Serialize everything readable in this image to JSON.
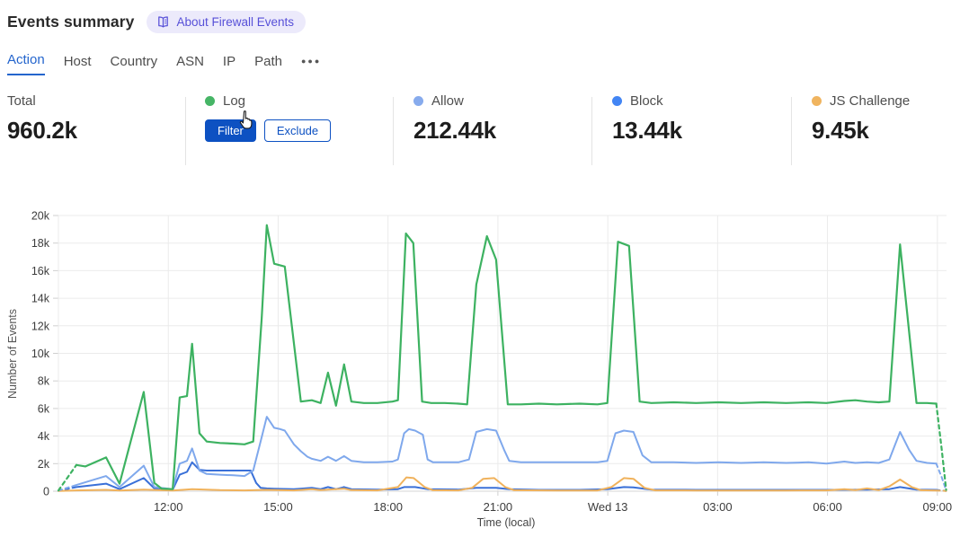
{
  "header": {
    "title": "Events summary",
    "about_label": "About Firewall Events"
  },
  "tabs": {
    "items": [
      {
        "label": "Action",
        "active": true
      },
      {
        "label": "Host"
      },
      {
        "label": "Country"
      },
      {
        "label": "ASN"
      },
      {
        "label": "IP"
      },
      {
        "label": "Path"
      }
    ]
  },
  "stats": {
    "total": {
      "label": "Total",
      "value": "960.2k"
    },
    "log": {
      "label": "Log",
      "dot_color": "#46b566",
      "filter_label": "Filter",
      "exclude_label": "Exclude"
    },
    "allow": {
      "label": "Allow",
      "value": "212.44k",
      "dot_color": "#87abed"
    },
    "block": {
      "label": "Block",
      "value": "13.44k",
      "dot_color": "#4285f4"
    },
    "js_challenge": {
      "label": "JS Challenge",
      "value": "9.45k",
      "dot_color": "#f0b45f"
    }
  },
  "colors": {
    "accent_blue": "#0d51c2",
    "badge_text": "#5750d8",
    "gridline": "#ebebeb",
    "axis": "#d5d5d5",
    "tick_text": "#3c3c3c"
  },
  "chart_data": {
    "type": "line",
    "title": "",
    "xlabel": "Time (local)",
    "ylabel": "Number of Events",
    "x_unit": "hours after 09:00 (previous day, local time)",
    "x_range_hours": [
      0,
      24.25
    ],
    "ylim": [
      0,
      20000
    ],
    "grid": true,
    "legend_position": "top-stats-row",
    "y_ticks": [
      {
        "v": 0,
        "label": "0"
      },
      {
        "v": 2000,
        "label": "2k"
      },
      {
        "v": 4000,
        "label": "4k"
      },
      {
        "v": 6000,
        "label": "6k"
      },
      {
        "v": 8000,
        "label": "8k"
      },
      {
        "v": 10000,
        "label": "10k"
      },
      {
        "v": 12000,
        "label": "12k"
      },
      {
        "v": 14000,
        "label": "14k"
      },
      {
        "v": 16000,
        "label": "16k"
      },
      {
        "v": 18000,
        "label": "18k"
      },
      {
        "v": 20000,
        "label": "20k"
      }
    ],
    "x_ticks": [
      {
        "t": 3,
        "label": "12:00"
      },
      {
        "t": 6,
        "label": "15:00"
      },
      {
        "t": 9,
        "label": "18:00"
      },
      {
        "t": 12,
        "label": "21:00"
      },
      {
        "t": 15,
        "label": "Wed 13"
      },
      {
        "t": 18,
        "label": "03:00"
      },
      {
        "t": 21,
        "label": "06:00"
      },
      {
        "t": 24,
        "label": "09:00"
      }
    ],
    "series": [
      {
        "name": "Block",
        "color": "#3a70d8",
        "width": 2,
        "dash_head": 1,
        "dash_tail": 1,
        "points": [
          [
            0,
            30
          ],
          [
            0.49,
            300
          ],
          [
            1.3,
            550
          ],
          [
            1.67,
            150
          ],
          [
            2.33,
            950
          ],
          [
            2.62,
            200
          ],
          [
            3.12,
            100
          ],
          [
            3.31,
            1200
          ],
          [
            3.51,
            1400
          ],
          [
            3.65,
            2100
          ],
          [
            3.85,
            1550
          ],
          [
            4.05,
            1500
          ],
          [
            4.41,
            1500
          ],
          [
            4.78,
            1500
          ],
          [
            5.08,
            1500
          ],
          [
            5.25,
            1500
          ],
          [
            5.4,
            600
          ],
          [
            5.52,
            250
          ],
          [
            5.69,
            200
          ],
          [
            5.89,
            180
          ],
          [
            6.43,
            150
          ],
          [
            6.92,
            250
          ],
          [
            7.16,
            150
          ],
          [
            7.36,
            300
          ],
          [
            7.58,
            150
          ],
          [
            7.8,
            300
          ],
          [
            8,
            150
          ],
          [
            8.71,
            120
          ],
          [
            9.27,
            150
          ],
          [
            9.44,
            300
          ],
          [
            9.74,
            300
          ],
          [
            10.08,
            150
          ],
          [
            10.92,
            120
          ],
          [
            11.41,
            250
          ],
          [
            11.95,
            250
          ],
          [
            12.31,
            150
          ],
          [
            13.12,
            100
          ],
          [
            14.23,
            100
          ],
          [
            14.99,
            150
          ],
          [
            15.44,
            300
          ],
          [
            15.7,
            280
          ],
          [
            16.19,
            120
          ],
          [
            17.41,
            100
          ],
          [
            18.64,
            100
          ],
          [
            19.87,
            100
          ],
          [
            20.97,
            100
          ],
          [
            22.08,
            120
          ],
          [
            22.69,
            150
          ],
          [
            22.98,
            300
          ],
          [
            23.43,
            120
          ],
          [
            23.97,
            100
          ],
          [
            24.24,
            20
          ]
        ]
      },
      {
        "name": "JS Challenge",
        "color": "#f0b25c",
        "width": 2,
        "dash_head": 0,
        "dash_tail": 1,
        "points": [
          [
            0,
            20
          ],
          [
            0.49,
            60
          ],
          [
            1.3,
            100
          ],
          [
            1.67,
            50
          ],
          [
            2.33,
            120
          ],
          [
            3.12,
            50
          ],
          [
            3.65,
            150
          ],
          [
            4.41,
            80
          ],
          [
            5.08,
            60
          ],
          [
            5.69,
            100
          ],
          [
            6.43,
            60
          ],
          [
            6.92,
            150
          ],
          [
            7.16,
            80
          ],
          [
            7.8,
            180
          ],
          [
            8,
            80
          ],
          [
            8.71,
            60
          ],
          [
            9.27,
            300
          ],
          [
            9.5,
            1000
          ],
          [
            9.7,
            950
          ],
          [
            10,
            300
          ],
          [
            10.23,
            70
          ],
          [
            10.92,
            60
          ],
          [
            11.3,
            250
          ],
          [
            11.6,
            900
          ],
          [
            11.9,
            950
          ],
          [
            12.2,
            300
          ],
          [
            12.45,
            70
          ],
          [
            13.61,
            50
          ],
          [
            14.72,
            50
          ],
          [
            15.1,
            300
          ],
          [
            15.44,
            950
          ],
          [
            15.7,
            900
          ],
          [
            16,
            250
          ],
          [
            16.3,
            60
          ],
          [
            17.41,
            50
          ],
          [
            18.64,
            50
          ],
          [
            19.87,
            50
          ],
          [
            20.97,
            60
          ],
          [
            21.46,
            150
          ],
          [
            21.76,
            80
          ],
          [
            22.08,
            200
          ],
          [
            22.4,
            80
          ],
          [
            22.69,
            350
          ],
          [
            22.98,
            850
          ],
          [
            23.3,
            300
          ],
          [
            23.55,
            70
          ],
          [
            23.97,
            50
          ],
          [
            24.24,
            20
          ]
        ]
      },
      {
        "name": "Allow",
        "color": "#7fa8ec",
        "width": 2,
        "dash_head": 1,
        "dash_tail": 2,
        "points": [
          [
            0,
            50
          ],
          [
            0.49,
            450
          ],
          [
            1.3,
            1100
          ],
          [
            1.67,
            300
          ],
          [
            2.33,
            1850
          ],
          [
            2.62,
            300
          ],
          [
            3.12,
            150
          ],
          [
            3.31,
            2000
          ],
          [
            3.51,
            2200
          ],
          [
            3.65,
            3100
          ],
          [
            3.85,
            1500
          ],
          [
            4.05,
            1250
          ],
          [
            4.41,
            1200
          ],
          [
            4.78,
            1150
          ],
          [
            5.08,
            1100
          ],
          [
            5.32,
            1500
          ],
          [
            5.52,
            3600
          ],
          [
            5.69,
            5400
          ],
          [
            5.89,
            4600
          ],
          [
            6.06,
            4500
          ],
          [
            6.18,
            4400
          ],
          [
            6.43,
            3400
          ],
          [
            6.62,
            2900
          ],
          [
            6.8,
            2500
          ],
          [
            6.92,
            2350
          ],
          [
            7.16,
            2200
          ],
          [
            7.36,
            2500
          ],
          [
            7.58,
            2200
          ],
          [
            7.8,
            2550
          ],
          [
            8,
            2200
          ],
          [
            8.34,
            2100
          ],
          [
            8.71,
            2100
          ],
          [
            9.12,
            2150
          ],
          [
            9.27,
            2300
          ],
          [
            9.44,
            4200
          ],
          [
            9.57,
            4500
          ],
          [
            9.74,
            4400
          ],
          [
            9.95,
            4100
          ],
          [
            10.08,
            2300
          ],
          [
            10.23,
            2100
          ],
          [
            10.55,
            2100
          ],
          [
            10.92,
            2100
          ],
          [
            11.21,
            2300
          ],
          [
            11.41,
            4300
          ],
          [
            11.7,
            4500
          ],
          [
            11.95,
            4400
          ],
          [
            12.17,
            3000
          ],
          [
            12.31,
            2200
          ],
          [
            12.63,
            2100
          ],
          [
            13.12,
            2100
          ],
          [
            13.61,
            2100
          ],
          [
            14.23,
            2100
          ],
          [
            14.72,
            2100
          ],
          [
            14.99,
            2200
          ],
          [
            15.21,
            4200
          ],
          [
            15.44,
            4400
          ],
          [
            15.7,
            4300
          ],
          [
            15.95,
            2600
          ],
          [
            16.19,
            2100
          ],
          [
            16.8,
            2100
          ],
          [
            17.41,
            2050
          ],
          [
            18.03,
            2100
          ],
          [
            18.64,
            2050
          ],
          [
            19.26,
            2100
          ],
          [
            19.87,
            2050
          ],
          [
            20.48,
            2100
          ],
          [
            20.97,
            2000
          ],
          [
            21.46,
            2150
          ],
          [
            21.76,
            2050
          ],
          [
            22.08,
            2100
          ],
          [
            22.4,
            2050
          ],
          [
            22.69,
            2300
          ],
          [
            22.98,
            4300
          ],
          [
            23.23,
            3000
          ],
          [
            23.43,
            2200
          ],
          [
            23.72,
            2050
          ],
          [
            23.97,
            2000
          ],
          [
            24.12,
            1000
          ],
          [
            24.24,
            50
          ]
        ]
      },
      {
        "name": "Log",
        "color": "#3db261",
        "width": 2.2,
        "dash_head": 1,
        "dash_tail": 2,
        "points": [
          [
            0,
            50
          ],
          [
            0.49,
            1900
          ],
          [
            0.74,
            1800
          ],
          [
            1.3,
            2450
          ],
          [
            1.67,
            550
          ],
          [
            2.33,
            7200
          ],
          [
            2.62,
            600
          ],
          [
            2.82,
            180
          ],
          [
            3.12,
            150
          ],
          [
            3.31,
            6800
          ],
          [
            3.51,
            6900
          ],
          [
            3.65,
            10700
          ],
          [
            3.85,
            4200
          ],
          [
            4.05,
            3600
          ],
          [
            4.41,
            3500
          ],
          [
            4.78,
            3450
          ],
          [
            5.08,
            3400
          ],
          [
            5.32,
            3600
          ],
          [
            5.55,
            12500
          ],
          [
            5.69,
            19300
          ],
          [
            5.89,
            16500
          ],
          [
            6.18,
            16300
          ],
          [
            6.62,
            6500
          ],
          [
            6.92,
            6600
          ],
          [
            7.16,
            6400
          ],
          [
            7.36,
            8600
          ],
          [
            7.58,
            6200
          ],
          [
            7.8,
            9200
          ],
          [
            8,
            6500
          ],
          [
            8.34,
            6400
          ],
          [
            8.71,
            6400
          ],
          [
            9.12,
            6500
          ],
          [
            9.27,
            6600
          ],
          [
            9.49,
            18700
          ],
          [
            9.69,
            18000
          ],
          [
            9.93,
            6500
          ],
          [
            10.18,
            6400
          ],
          [
            10.55,
            6400
          ],
          [
            10.92,
            6350
          ],
          [
            11.16,
            6300
          ],
          [
            11.41,
            15000
          ],
          [
            11.7,
            18500
          ],
          [
            11.95,
            16800
          ],
          [
            12.27,
            6300
          ],
          [
            12.63,
            6300
          ],
          [
            13.12,
            6350
          ],
          [
            13.61,
            6300
          ],
          [
            14.23,
            6350
          ],
          [
            14.72,
            6300
          ],
          [
            14.99,
            6400
          ],
          [
            15.28,
            18100
          ],
          [
            15.58,
            17800
          ],
          [
            15.87,
            6500
          ],
          [
            16.19,
            6400
          ],
          [
            16.8,
            6450
          ],
          [
            17.41,
            6400
          ],
          [
            18.03,
            6450
          ],
          [
            18.64,
            6400
          ],
          [
            19.26,
            6450
          ],
          [
            19.87,
            6400
          ],
          [
            20.48,
            6450
          ],
          [
            20.97,
            6400
          ],
          [
            21.46,
            6550
          ],
          [
            21.76,
            6600
          ],
          [
            22.08,
            6500
          ],
          [
            22.4,
            6450
          ],
          [
            22.69,
            6500
          ],
          [
            22.98,
            17900
          ],
          [
            23.43,
            6400
          ],
          [
            23.72,
            6400
          ],
          [
            23.97,
            6350
          ],
          [
            24.12,
            3000
          ],
          [
            24.24,
            100
          ]
        ]
      }
    ]
  }
}
